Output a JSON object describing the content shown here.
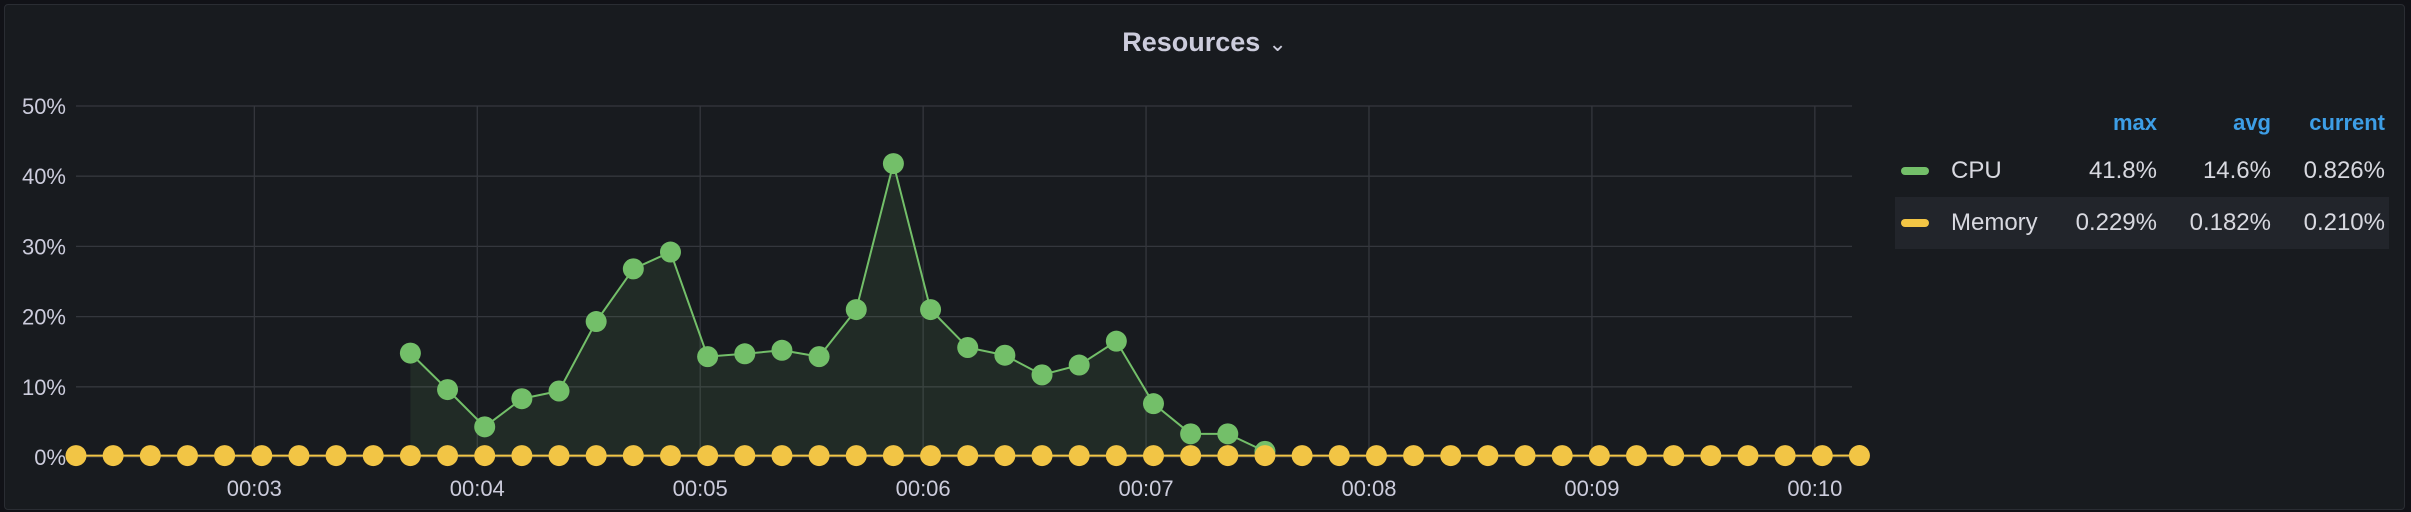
{
  "panel": {
    "title": "Resources",
    "chevron_icon": "chevron-down-icon"
  },
  "legend": {
    "headers": [
      "max",
      "avg",
      "current"
    ],
    "rows": [
      {
        "name": "CPU",
        "color": "#73bf69",
        "max": "41.8%",
        "avg": "14.6%",
        "current": "0.826%"
      },
      {
        "name": "Memory",
        "color": "#f2c545",
        "max": "0.229%",
        "avg": "0.182%",
        "current": "0.210%"
      }
    ]
  },
  "chart_data": {
    "type": "line",
    "title": "Resources",
    "xlabel": "",
    "ylabel": "",
    "x_tick_labels": [
      "00:03",
      "00:04",
      "00:05",
      "00:06",
      "00:07",
      "00:08",
      "00:09",
      "00:10"
    ],
    "y_tick_labels": [
      "0%",
      "10%",
      "20%",
      "30%",
      "40%",
      "50%"
    ],
    "ylim": [
      0,
      50
    ],
    "x_unit": "seconds",
    "xlim": [
      132,
      610
    ],
    "sample_interval_s": 10,
    "grid": true,
    "legend_placement": "right",
    "series": [
      {
        "name": "CPU",
        "color": "#73bf69",
        "area_fill": true,
        "start_s": 222,
        "values": [
          14.8,
          9.6,
          4.3,
          8.3,
          9.4,
          19.3,
          26.8,
          29.2,
          14.3,
          14.7,
          15.2,
          14.3,
          21.0,
          41.8,
          21.0,
          15.6,
          14.5,
          11.7,
          13.1,
          16.5,
          7.6,
          3.3,
          3.3,
          0.8
        ]
      },
      {
        "name": "Memory",
        "color": "#f2c545",
        "area_fill": false,
        "start_s": 132,
        "values": [
          0.2,
          0.2,
          0.2,
          0.2,
          0.2,
          0.2,
          0.2,
          0.2,
          0.2,
          0.2,
          0.2,
          0.2,
          0.2,
          0.2,
          0.2,
          0.2,
          0.2,
          0.2,
          0.2,
          0.2,
          0.2,
          0.2,
          0.2,
          0.2,
          0.2,
          0.2,
          0.2,
          0.2,
          0.2,
          0.2,
          0.2,
          0.2,
          0.2,
          0.2,
          0.2,
          0.2,
          0.2,
          0.2,
          0.2,
          0.2,
          0.2,
          0.2,
          0.2,
          0.2,
          0.2,
          0.2,
          0.2,
          0.2,
          0.21
        ]
      }
    ]
  }
}
